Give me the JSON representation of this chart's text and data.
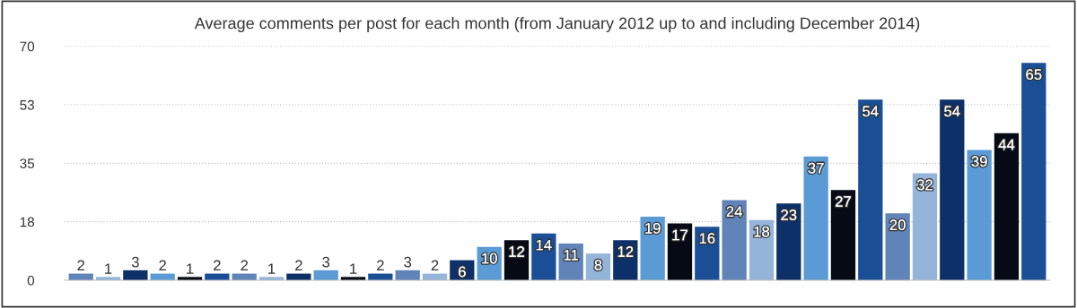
{
  "chart_data": {
    "type": "bar",
    "title": "Average comments per post for each month (from January 2012 up to and including December 2014)",
    "categories": [
      null,
      null,
      null,
      null,
      null,
      null,
      null,
      null,
      null,
      null,
      null,
      null,
      null,
      null,
      null,
      null,
      null,
      null,
      null,
      null,
      null,
      null,
      null,
      null,
      null,
      null,
      null,
      null,
      null,
      null,
      null,
      null,
      null,
      null,
      null,
      null
    ],
    "values": [
      2,
      1,
      3,
      2,
      1,
      2,
      2,
      1,
      2,
      3,
      1,
      2,
      3,
      2,
      6,
      10,
      12,
      14,
      11,
      8,
      12,
      19,
      17,
      16,
      24,
      18,
      23,
      37,
      27,
      54,
      20,
      32,
      54,
      39,
      44,
      65
    ],
    "colors": [
      "#6083b8",
      "#94b4da",
      "#0d3068",
      "#5b9bd5",
      "#050a14",
      "#1a4f95",
      "#6083b8",
      "#94b4da",
      "#0d3068",
      "#5b9bd5",
      "#050a14",
      "#1a4f95",
      "#6083b8",
      "#94b4da",
      "#0d3068",
      "#5b9bd5",
      "#050a14",
      "#1a4f95",
      "#6083b8",
      "#94b4da",
      "#0d3068",
      "#5b9bd5",
      "#050a14",
      "#1a4f95",
      "#6083b8",
      "#94b4da",
      "#0d3068",
      "#5b9bd5",
      "#050a14",
      "#1a4f95",
      "#6083b8",
      "#94b4da",
      "#0d3068",
      "#5b9bd5",
      "#050a14",
      "#1a4f95"
    ],
    "ylim": [
      0,
      70
    ],
    "yticks": [
      0,
      {
        "value": 17.5,
        "label": "18"
      },
      35,
      {
        "value": 52.5,
        "label": "53"
      },
      70
    ],
    "grid": "y",
    "data_labels": true
  }
}
